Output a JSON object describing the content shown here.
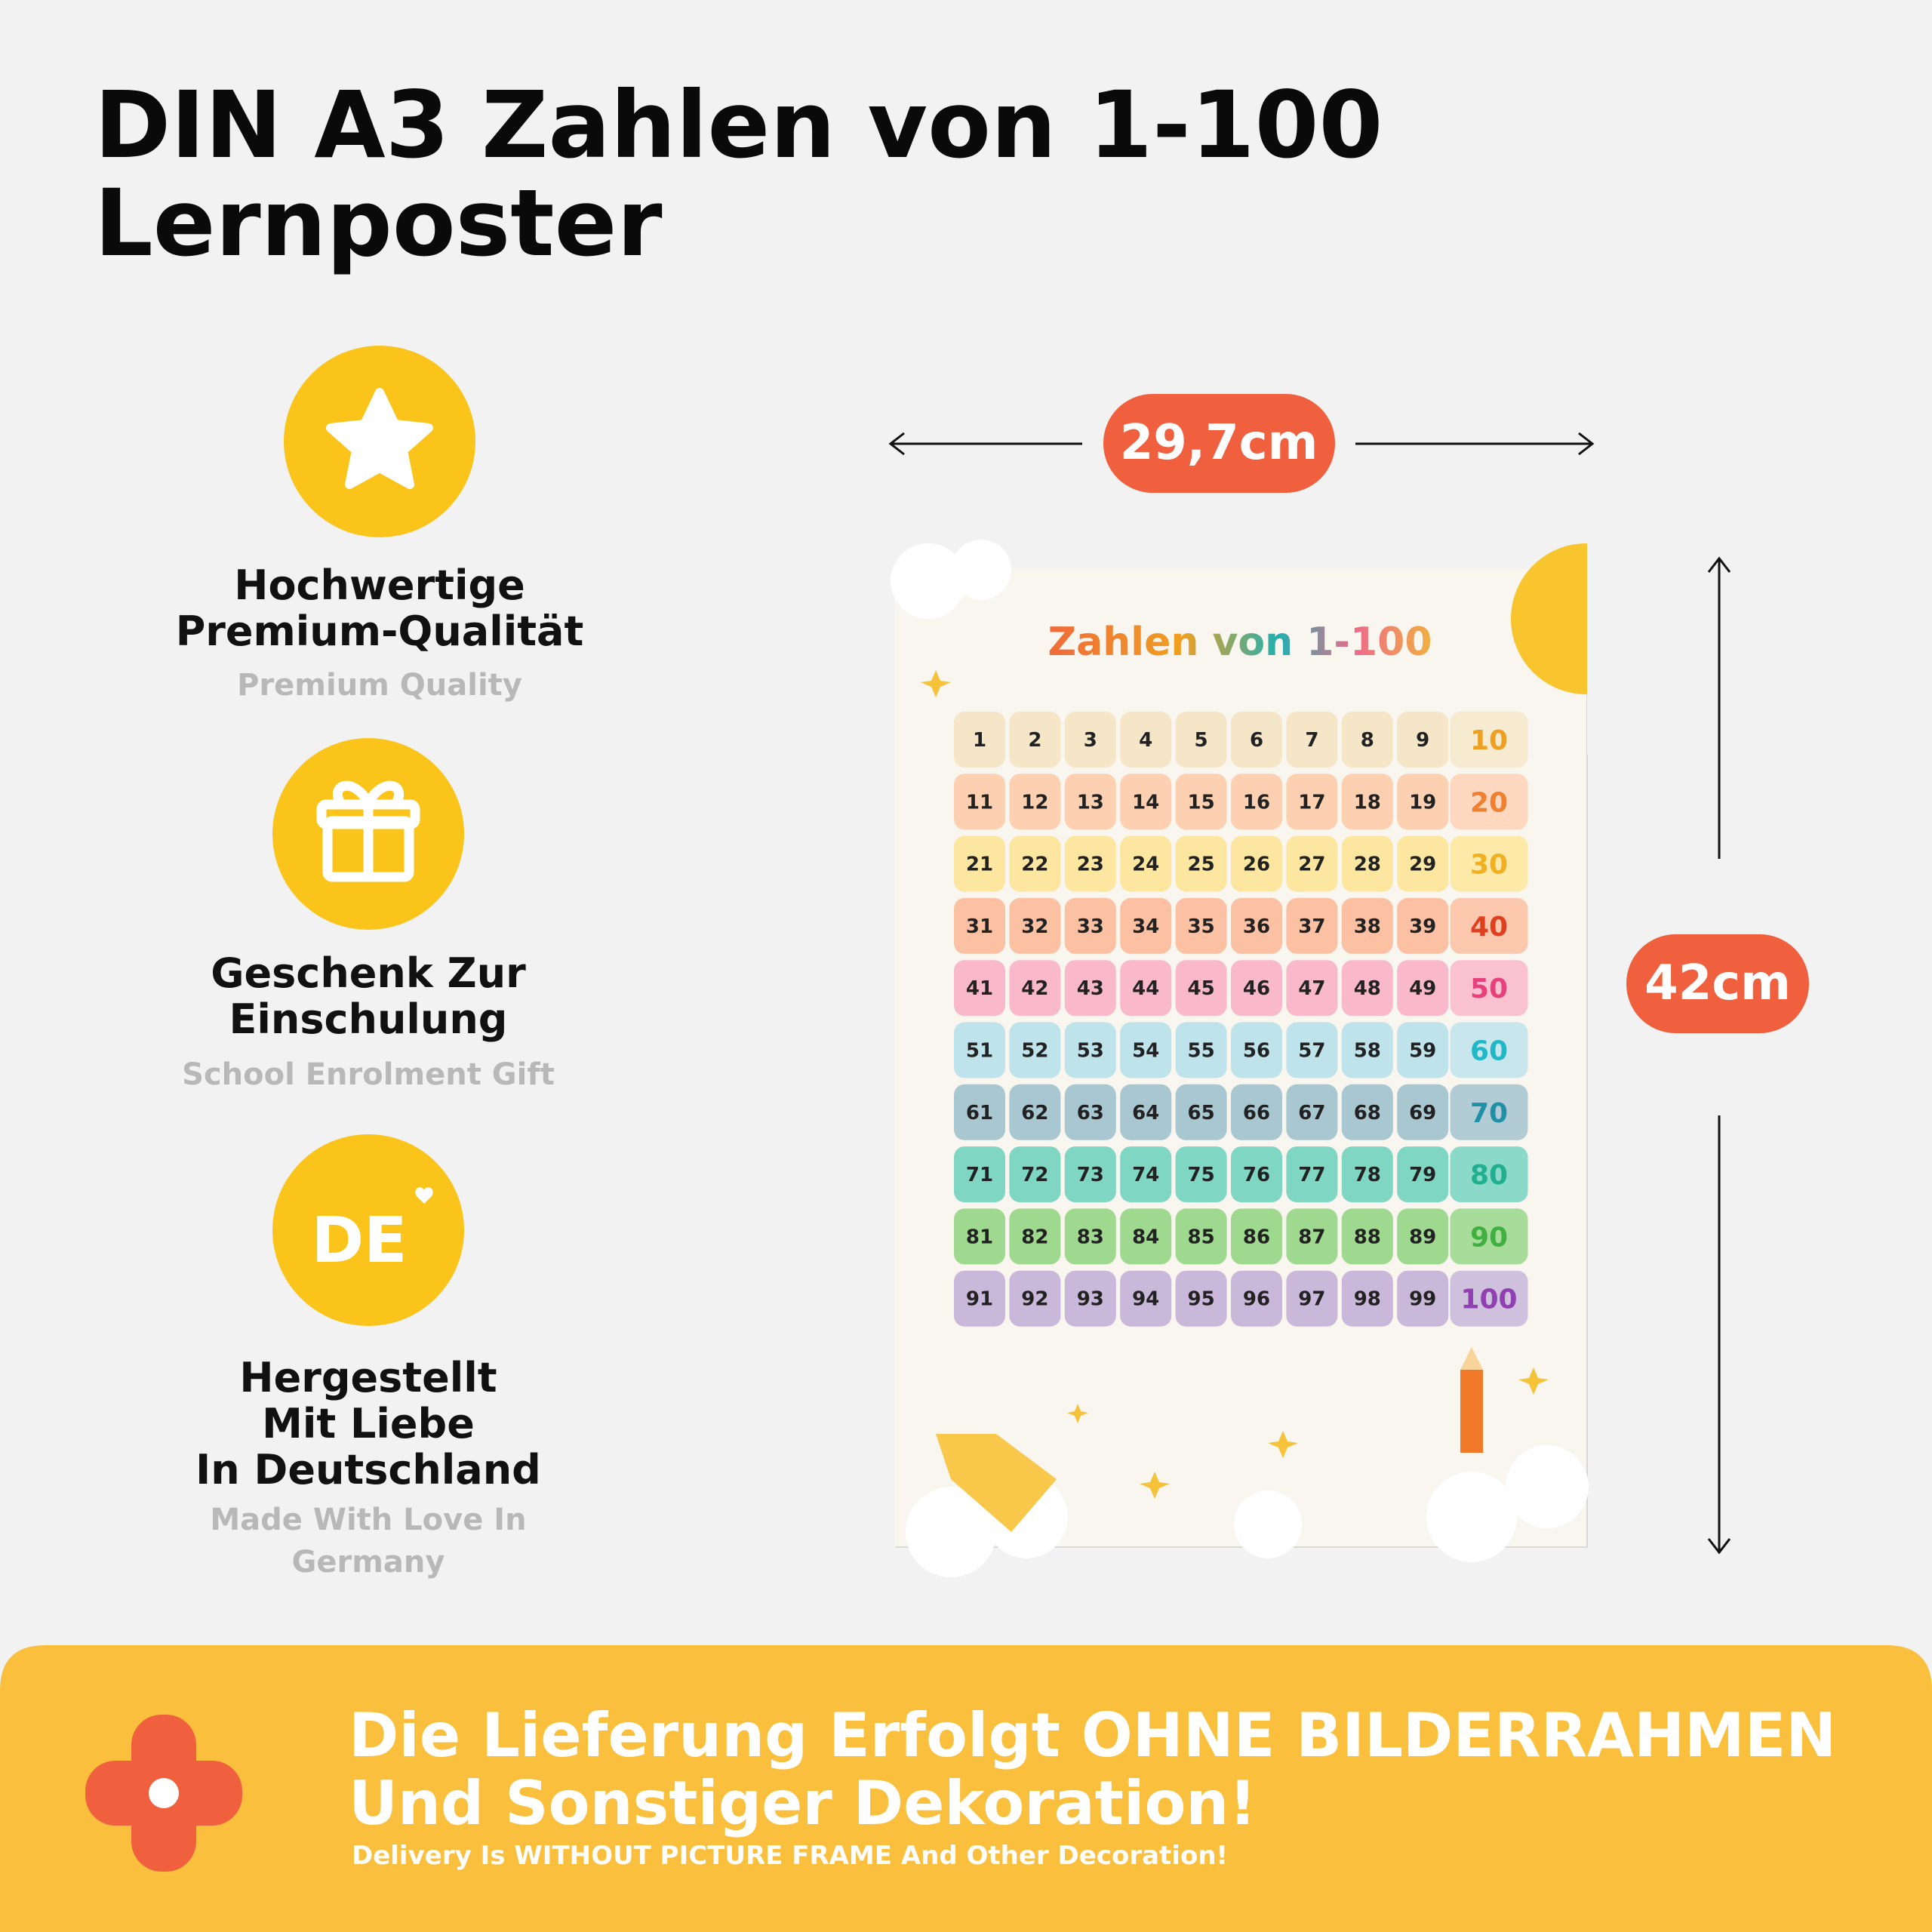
{
  "header": {
    "title_lines": [
      "DIN A3 Zahlen von 1-100",
      "Lernposter"
    ]
  },
  "features": [
    {
      "icon_text": null,
      "title_lines": [
        "Hochwertige",
        "Premium-Qualität"
      ],
      "subtitle_lines": [
        "Premium Quality"
      ]
    },
    {
      "icon_text": null,
      "title_lines": [
        "Geschenk Zur",
        "Einschulung"
      ],
      "subtitle_lines": [
        "School Enrolment Gift"
      ]
    },
    {
      "icon_text": "DE",
      "title_lines": [
        "Hergestellt",
        "Mit Liebe",
        "In Deutschland"
      ],
      "subtitle_lines": [
        "Made With Love In",
        "Germany"
      ]
    }
  ],
  "dimensions": {
    "width": "29,7cm",
    "height": "42cm"
  },
  "poster": {
    "title": "Zahlen von 1-100",
    "grid": [
      [
        1,
        2,
        3,
        4,
        5,
        6,
        7,
        8,
        9,
        10
      ],
      [
        11,
        12,
        13,
        14,
        15,
        16,
        17,
        18,
        19,
        20
      ],
      [
        21,
        22,
        23,
        24,
        25,
        26,
        27,
        28,
        29,
        30
      ],
      [
        31,
        32,
        33,
        34,
        35,
        36,
        37,
        38,
        39,
        40
      ],
      [
        41,
        42,
        43,
        44,
        45,
        46,
        47,
        48,
        49,
        50
      ],
      [
        51,
        52,
        53,
        54,
        55,
        56,
        57,
        58,
        59,
        60
      ],
      [
        61,
        62,
        63,
        64,
        65,
        66,
        67,
        68,
        69,
        70
      ],
      [
        71,
        72,
        73,
        74,
        75,
        76,
        77,
        78,
        79,
        80
      ],
      [
        81,
        82,
        83,
        84,
        85,
        86,
        87,
        88,
        89,
        90
      ],
      [
        91,
        92,
        93,
        94,
        95,
        96,
        97,
        98,
        99,
        100
      ]
    ]
  },
  "footer": {
    "lines": [
      "Die Lieferung Erfolgt OHNE BILDERRAHMEN",
      "Und Sonstiger Dekoration!"
    ],
    "note": "Delivery Is WITHOUT PICTURE FRAME And Other Decoration!"
  }
}
